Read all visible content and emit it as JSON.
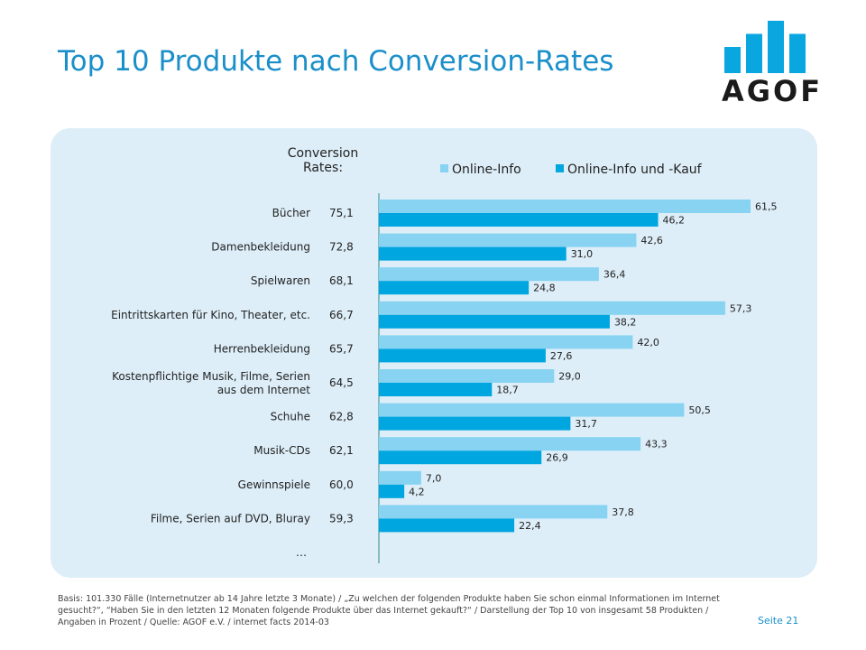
{
  "header": {
    "title": "Top 10 Produkte nach Conversion-Rates"
  },
  "logo": {
    "text": "AGOF",
    "bar_color": "#0aa6df",
    "bar_levels": [
      0.5,
      0.75,
      1.0,
      0.75
    ]
  },
  "legend": {
    "conversion_label_line1": "Conversion",
    "conversion_label_line2": "Rates:",
    "items": [
      {
        "label": "Online-Info",
        "color": "#87d3f1"
      },
      {
        "label": "Online-Info und -Kauf",
        "color": "#00a6e0"
      }
    ]
  },
  "chart_data": {
    "type": "bar",
    "orientation": "horizontal",
    "categories": [
      [
        "Bücher"
      ],
      [
        "Damenbekleidung"
      ],
      [
        "Spielwaren"
      ],
      [
        "Eintrittskarten für Kino, Theater, etc."
      ],
      [
        "Herrenbekleidung"
      ],
      [
        "Kostenpflichtige Musik, Filme, Serien",
        "aus dem Internet"
      ],
      [
        "Schuhe"
      ],
      [
        "Musik-CDs"
      ],
      [
        "Gewinnspiele"
      ],
      [
        "Filme, Serien auf DVD, Bluray"
      ]
    ],
    "conversion_rates": [
      "75,1",
      "72,8",
      "68,1",
      "66,7",
      "65,7",
      "64,5",
      "62,8",
      "62,1",
      "60,0",
      "59,3"
    ],
    "series": [
      {
        "name": "Online-Info",
        "color": "#87d3f1",
        "values": [
          61.5,
          42.6,
          36.4,
          57.3,
          42.0,
          29.0,
          50.5,
          43.3,
          7.0,
          37.8
        ],
        "labels": [
          "61,5",
          "42,6",
          "36,4",
          "57,3",
          "42,0",
          "29,0",
          "50,5",
          "43,3",
          "7,0",
          "37,8"
        ]
      },
      {
        "name": "Online-Info und -Kauf",
        "color": "#00a6e0",
        "values": [
          46.2,
          31.0,
          24.8,
          38.2,
          27.6,
          18.7,
          31.7,
          26.9,
          4.2,
          22.4
        ],
        "labels": [
          "46,2",
          "31,0",
          "24,8",
          "38,2",
          "27,6",
          "18,7",
          "31,7",
          "26,9",
          "4,2",
          "22,4"
        ]
      }
    ],
    "trailing_row_label": "…",
    "xlim": [
      0,
      100
    ]
  },
  "footer": {
    "footnote": "Basis: 101.330 Fälle (Internetnutzer ab 14 Jahre letzte 3 Monate) / „Zu welchen der folgenden Produkte haben Sie schon einmal Informationen im Internet gesucht?“, “Haben Sie in den letzten 12 Monaten folgende Produkte über das Internet gekauft?“ / Darstellung der Top 10 von insgesamt 58 Produkten / Angaben in Prozent / Quelle: AGOF e.V. / internet facts 2014-03",
    "page": "Seite 21"
  }
}
